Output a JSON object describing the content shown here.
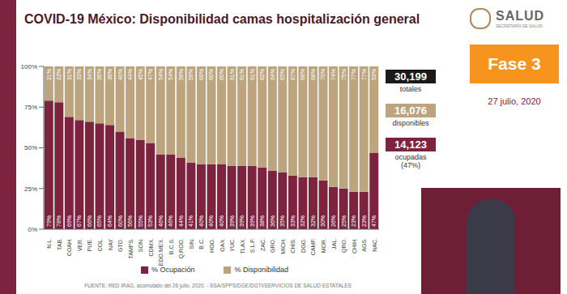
{
  "chart_data": {
    "type": "bar",
    "title": "COVID-19 México: Disponibilidad camas hospitalización general",
    "categories": [
      "N.L.",
      "TAB.",
      "COAH.",
      "VER.",
      "PUE.",
      "COL.",
      "NAY.",
      "GTO.",
      "TAMPS.",
      "SON.",
      "CDMX.",
      "EDO.MEX.",
      "B.C.S.",
      "Q.ROO.",
      "SIN.",
      "B.C.",
      "HGO.",
      "OAX.",
      "YUC.",
      "TLAX.",
      "S.L.P.",
      "ZAC.",
      "GRO.",
      "MICH.",
      "CHIS.",
      "DGO.",
      "CAMP.",
      "MOR.",
      "JAL.",
      "QRO.",
      "CHIH.",
      "AGS.",
      "NAC."
    ],
    "series": [
      {
        "name": "% Ocupación",
        "color": "#7d2340",
        "values": [
          79,
          78,
          69,
          67,
          66,
          65,
          64,
          60,
          56,
          55,
          53,
          46,
          46,
          44,
          41,
          40,
          40,
          40,
          39,
          39,
          39,
          38,
          36,
          35,
          33,
          32,
          32,
          30,
          26,
          25,
          23,
          23,
          47
        ],
        "value_labels": [
          "79%",
          "78%",
          "69%",
          "67%",
          "66%",
          "65%",
          "64%",
          "60%",
          "56%",
          "55%",
          "53%",
          "46%",
          "46%",
          "44%",
          "41%",
          "40%",
          "40%",
          "40%",
          "39%",
          "39%",
          "39%",
          "38%",
          "36%",
          "35%",
          "33%",
          "32%",
          "32%",
          "30%",
          "26%",
          "25%",
          "23%",
          "23%",
          "47%"
        ]
      },
      {
        "name": "% Disponibilidad",
        "color": "#bca47e",
        "values": [
          21,
          22,
          31,
          33,
          34,
          35,
          36,
          40,
          44,
          45,
          47,
          54,
          54,
          56,
          59,
          60,
          60,
          60,
          61,
          61,
          61,
          62,
          64,
          65,
          67,
          68,
          68,
          70,
          74,
          75,
          77,
          77,
          53
        ],
        "value_labels": [
          "21%",
          "22%",
          "31%",
          "33%",
          "34%",
          "35%",
          "36%",
          "40%",
          "44%",
          "45%",
          "47%",
          "54%",
          "54%",
          "56%",
          "59%",
          "60%",
          "60%",
          "60%",
          "61%",
          "61%",
          "61%",
          "62%",
          "64%",
          "65%",
          "67%",
          "68%",
          "68%",
          "70%",
          "74%",
          "75%",
          "77%",
          "77%",
          "53%"
        ]
      }
    ],
    "ylim": [
      0,
      100
    ],
    "yticks": [
      {
        "value": 0,
        "label": "0%"
      },
      {
        "value": 25,
        "label": "25%"
      },
      {
        "value": 50,
        "label": "50%"
      },
      {
        "value": 75,
        "label": "75%"
      },
      {
        "value": 100,
        "label": "100%"
      }
    ],
    "stacked": true,
    "data_labels": true,
    "legend": "bottom",
    "grid": false
  },
  "header": {
    "logo": "SALUD",
    "logo_subtitle": "SECRETARÍA DE SALUD",
    "phase": "Fase 3",
    "date": "27 julio, 2020"
  },
  "panel": [
    {
      "number": "30,199",
      "label": "totales",
      "color": "#1a1a1a"
    },
    {
      "number": "16,076",
      "label": "disponibles",
      "color": "#bca47e"
    },
    {
      "number": "14,123",
      "label": "ocupadas (47%)",
      "color": "#7d2340"
    }
  ],
  "footer": "FUENTE: RED IRAG, acumulado del 26 julio, 2020. - SSA/SPPS/DGE/DGTI/SERVICIOS DE SALUD ESTATALES"
}
